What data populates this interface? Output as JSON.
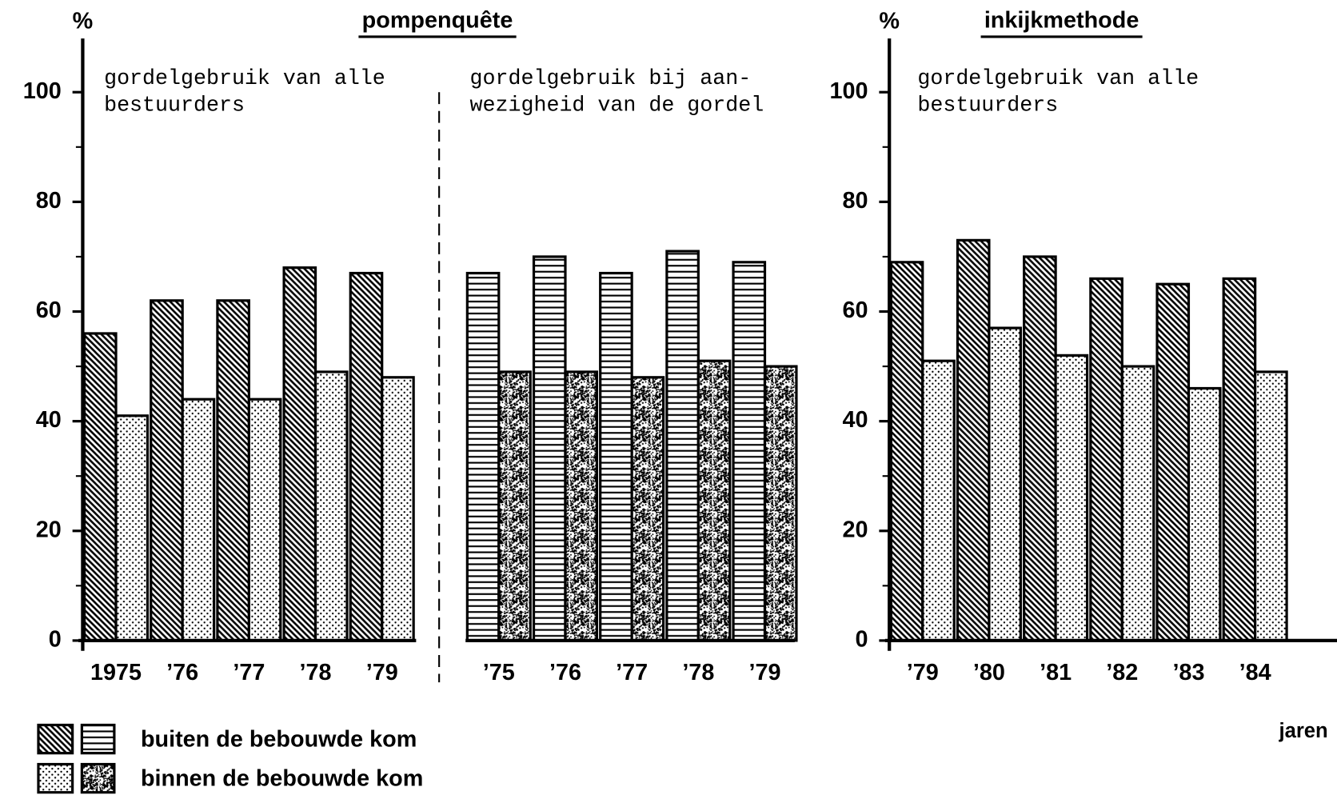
{
  "chart_data": [
    {
      "type": "bar",
      "title": "pompenquête",
      "y_label": "%",
      "annotation": [
        "gordelgebruik van alle",
        "bestuurders"
      ],
      "categories": [
        "1975",
        "’76",
        "’77",
        "’78",
        "’79"
      ],
      "series": [
        {
          "name": "buiten de bebouwde kom",
          "color": "#000000",
          "pattern": "diagonal",
          "values": [
            56,
            62,
            62,
            68,
            67
          ]
        },
        {
          "name": "binnen de bebouwde kom",
          "color": "#000000",
          "pattern": "dots",
          "values": [
            41,
            44,
            44,
            49,
            48
          ]
        }
      ],
      "ylim": [
        0,
        100
      ],
      "yticks": [
        0,
        20,
        40,
        60,
        80,
        100
      ]
    },
    {
      "type": "bar",
      "annotation": [
        "gordelgebruik bij aan-",
        "wezigheid van de gordel"
      ],
      "categories": [
        "’75",
        "’76",
        "’77",
        "’78",
        "’79"
      ],
      "series": [
        {
          "color": "#000000",
          "pattern": "horizontal",
          "values": [
            67,
            70,
            67,
            71,
            69
          ]
        },
        {
          "color": "#000000",
          "pattern": "speckle",
          "values": [
            49,
            49,
            48,
            51,
            50
          ]
        }
      ],
      "ylim": [
        0,
        100
      ]
    },
    {
      "type": "bar",
      "title": "inkijkmethode",
      "y_label": "%",
      "x_label": "jaren",
      "annotation": [
        "gordelgebruik van alle",
        "bestuurders"
      ],
      "categories": [
        "’79",
        "’80",
        "’81",
        "’82",
        "’83",
        "’84"
      ],
      "series": [
        {
          "color": "#000000",
          "pattern": "diagonal",
          "values": [
            69,
            73,
            70,
            66,
            65,
            66
          ]
        },
        {
          "color": "#000000",
          "pattern": "dots",
          "values": [
            51,
            57,
            52,
            50,
            46,
            49
          ]
        }
      ],
      "ylim": [
        0,
        100
      ],
      "yticks": [
        0,
        20,
        40,
        60,
        80,
        100
      ]
    }
  ]
}
